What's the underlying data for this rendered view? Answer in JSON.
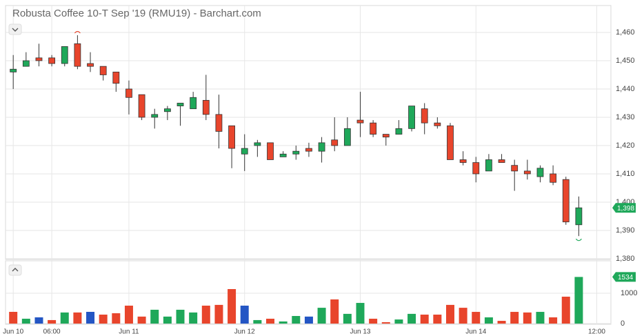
{
  "chart_data": [
    {
      "type": "candlestick",
      "title": "Robusta Coffee 10-T Sep '19 (RMU19) - Barchart.com",
      "open": [
        1446,
        1448,
        1451,
        1451,
        1449,
        1456,
        1449,
        1448,
        1446,
        1440,
        1438,
        1430,
        1432,
        1434,
        1433,
        1436,
        1431,
        1427,
        1417,
        1420,
        1421,
        1416,
        1417,
        1419,
        1418,
        1422,
        1420,
        1429,
        1428,
        1424,
        1424,
        1426,
        1433,
        1428,
        1427,
        1415,
        1414,
        1411,
        1415,
        1413,
        1411,
        1409,
        1410,
        1408,
        1392
      ],
      "high": [
        1452,
        1453,
        1456,
        1452,
        1455,
        1459,
        1453,
        1448,
        1446,
        1443,
        1438,
        1433,
        1434,
        1435,
        1439,
        1445,
        1438,
        1427,
        1424,
        1422,
        1421,
        1418,
        1420,
        1421,
        1423,
        1430,
        1430,
        1439,
        1429,
        1424,
        1429,
        1434,
        1435,
        1430,
        1428,
        1418,
        1416,
        1417,
        1417,
        1415,
        1415,
        1413,
        1413,
        1409,
        1402
      ],
      "low": [
        1440,
        1448,
        1448,
        1448,
        1448,
        1447,
        1446,
        1443,
        1439,
        1431,
        1429,
        1426,
        1429,
        1427,
        1433,
        1429,
        1419,
        1412,
        1411,
        1416,
        1415,
        1416,
        1415,
        1416,
        1414,
        1418,
        1420,
        1423,
        1423,
        1420,
        1424,
        1425,
        1424,
        1426,
        1415,
        1413,
        1407,
        1411,
        1414,
        1404,
        1408,
        1407,
        1406,
        1392,
        1388
      ],
      "close": [
        1447,
        1450,
        1450,
        1449,
        1455,
        1448,
        1448,
        1445,
        1442,
        1437,
        1430,
        1431,
        1433,
        1435,
        1437,
        1431,
        1425,
        1419,
        1419,
        1421,
        1415,
        1417,
        1418,
        1418,
        1421,
        1420,
        1426,
        1428,
        1424,
        1423,
        1426,
        1434,
        1428,
        1427,
        1415,
        1414,
        1410,
        1415,
        1414,
        1411,
        1410,
        1412,
        1407,
        1393,
        1398
      ],
      "up_color": "#1fa85a",
      "down_color": "#e8452c",
      "last_label": "1,398",
      "xlim": [
        -0.6,
        46.5
      ],
      "ylim": [
        1380,
        1469.5
      ],
      "yticks": [
        {
          "value": 1380,
          "label": "1,380"
        },
        {
          "value": 1390,
          "label": "1,390"
        },
        {
          "value": 1400,
          "label": "1,400"
        },
        {
          "value": 1410,
          "label": "1,410"
        },
        {
          "value": 1420,
          "label": "1,420"
        },
        {
          "value": 1430,
          "label": "1,430"
        },
        {
          "value": 1440,
          "label": "1,440"
        },
        {
          "value": 1450,
          "label": "1,450"
        },
        {
          "value": 1460,
          "label": "1,460"
        }
      ],
      "grid": true
    },
    {
      "type": "bar",
      "values": [
        386,
        160,
        205,
        115,
        365,
        365,
        386,
        295,
        340,
        590,
        230,
        455,
        230,
        455,
        365,
        590,
        615,
        1135,
        590,
        115,
        160,
        70,
        250,
        230,
        520,
        795,
        320,
        680,
        160,
        45,
        135,
        320,
        295,
        295,
        615,
        520,
        385,
        205,
        90,
        385,
        365,
        385,
        205,
        885,
        1534
      ],
      "colors": [
        "#e8452c",
        "#1fa85a",
        "#2456c4",
        "#e8452c",
        "#1fa85a",
        "#e8452c",
        "#2456c4",
        "#e8452c",
        "#e8452c",
        "#e8452c",
        "#e8452c",
        "#1fa85a",
        "#1fa85a",
        "#1fa85a",
        "#1fa85a",
        "#e8452c",
        "#e8452c",
        "#e8452c",
        "#2456c4",
        "#1fa85a",
        "#e8452c",
        "#1fa85a",
        "#1fa85a",
        "#2456c4",
        "#1fa85a",
        "#e8452c",
        "#1fa85a",
        "#1fa85a",
        "#e8452c",
        "#e8452c",
        "#1fa85a",
        "#1fa85a",
        "#e8452c",
        "#e8452c",
        "#e8452c",
        "#e8452c",
        "#e8452c",
        "#1fa85a",
        "#e8452c",
        "#e8452c",
        "#e8452c",
        "#1fa85a",
        "#e8452c",
        "#e8452c",
        "#1fa85a"
      ],
      "xlim": [
        -0.6,
        46.5
      ],
      "xticks": [
        {
          "value": 0,
          "label": "Jun 10"
        },
        {
          "value": 3,
          "label": "06:00"
        },
        {
          "value": 9,
          "label": "Jun 11"
        },
        {
          "value": 18,
          "label": "Jun 12"
        },
        {
          "value": 27,
          "label": "Jun 13"
        },
        {
          "value": 36,
          "label": "Jun 14"
        },
        {
          "value": 45.4,
          "label": "12:00"
        }
      ],
      "ylim": [
        0,
        2020
      ],
      "yticks": [
        0,
        1000
      ],
      "grid": true
    }
  ]
}
